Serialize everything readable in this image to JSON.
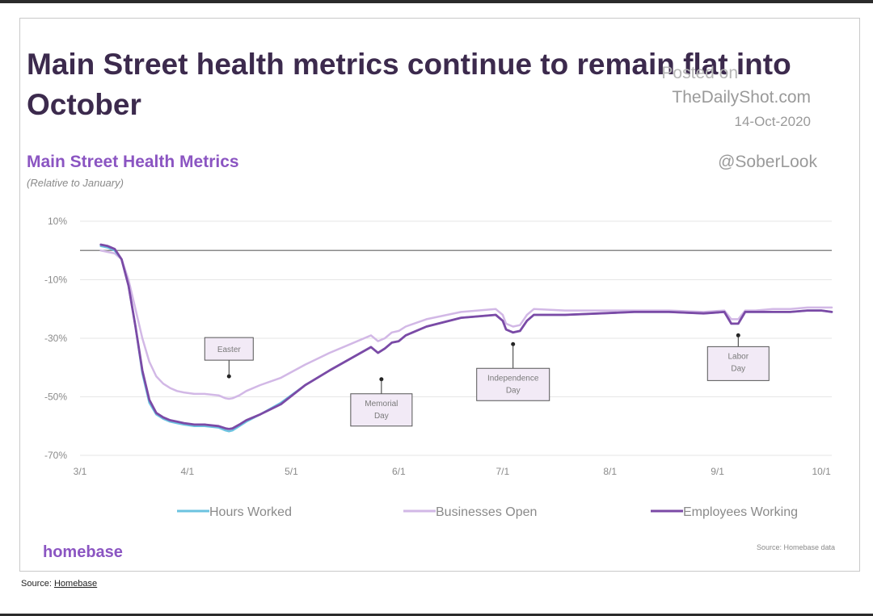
{
  "headline": "Main Street health metrics continue to remain flat into October",
  "watermark": {
    "posted": "Posted on",
    "site": "TheDailyShot.com",
    "date": "14-Oct-2020",
    "handle": "@SoberLook"
  },
  "brand": "homebase",
  "source_note": "Source: Homebase data",
  "source_line": {
    "prefix": "Source: ",
    "link": "Homebase"
  },
  "colors": {
    "hours_worked": "#6cc3e0",
    "businesses_open": "#d2b8e6",
    "employees_working": "#7b4aa6",
    "title": "#3c2a4d",
    "accent": "#8b55c2"
  },
  "chart_data": {
    "type": "line",
    "title": "Main Street Health Metrics",
    "subtitle": "(Relative to January)",
    "xlabel": "",
    "ylabel": "",
    "x_ticks": [
      "3/1",
      "4/1",
      "5/1",
      "6/1",
      "7/1",
      "8/1",
      "9/1",
      "10/1"
    ],
    "x_tick_days": [
      0,
      31,
      61,
      92,
      122,
      153,
      184,
      214
    ],
    "xlim_days": [
      0,
      217
    ],
    "y_ticks": [
      10,
      -10,
      -30,
      -50,
      -70
    ],
    "y_tick_labels": [
      "10%",
      "-10%",
      "-30%",
      "-50%",
      "-70%"
    ],
    "ylim": [
      -70,
      10
    ],
    "zero_line": 0,
    "legend_position": "bottom",
    "series": [
      {
        "name": "Hours Worked",
        "color": "#6cc3e0",
        "x": [
          6,
          8,
          10,
          12,
          14,
          16,
          18,
          20,
          22,
          24,
          26,
          28,
          30,
          33,
          36,
          40,
          42,
          43,
          44,
          46,
          48,
          52,
          58,
          65,
          72,
          78,
          84,
          86,
          88,
          90,
          92,
          94,
          100,
          110,
          120,
          122,
          123,
          125,
          127,
          129,
          131,
          140,
          150,
          160,
          170,
          180,
          186,
          188,
          190,
          192,
          195,
          200,
          205,
          210,
          214,
          217
        ],
        "y": [
          1.5,
          1,
          0,
          -3,
          -12,
          -26,
          -42,
          -52,
          -56,
          -57.5,
          -58.5,
          -59,
          -59.5,
          -60,
          -60,
          -60.5,
          -61.5,
          -61.8,
          -61.5,
          -60,
          -58.5,
          -56,
          -52,
          -46,
          -41,
          -37,
          -33,
          -35,
          -33.5,
          -31.5,
          -31,
          -29,
          -26,
          -23,
          -22,
          -24,
          -27,
          -28,
          -27.5,
          -24,
          -22,
          -22,
          -21.5,
          -21,
          -21,
          -21.5,
          -21,
          -25,
          -25,
          -21,
          -21,
          -21,
          -21,
          -20.5,
          -20.5,
          -21
        ]
      },
      {
        "name": "Businesses Open",
        "color": "#d2b8e6",
        "x": [
          6,
          8,
          10,
          12,
          14,
          16,
          18,
          20,
          22,
          24,
          26,
          28,
          30,
          33,
          36,
          40,
          42,
          43,
          44,
          46,
          48,
          52,
          58,
          65,
          72,
          78,
          84,
          86,
          88,
          90,
          92,
          94,
          100,
          110,
          120,
          122,
          123,
          125,
          127,
          129,
          131,
          140,
          150,
          160,
          170,
          180,
          186,
          188,
          190,
          192,
          195,
          200,
          205,
          210,
          214,
          217
        ],
        "y": [
          0,
          -0.5,
          -1,
          -3,
          -10,
          -20,
          -30,
          -38,
          -43,
          -45.5,
          -47,
          -48,
          -48.5,
          -49,
          -49,
          -49.5,
          -50.5,
          -50.7,
          -50.5,
          -49.5,
          -48,
          -46,
          -43.5,
          -39,
          -35,
          -32,
          -29,
          -31,
          -30,
          -28,
          -27.5,
          -26,
          -23.5,
          -21,
          -20,
          -22,
          -25,
          -26,
          -25.5,
          -22,
          -20,
          -20.5,
          -20.5,
          -20.5,
          -20.5,
          -21,
          -20.5,
          -23.5,
          -23.5,
          -20.5,
          -20.5,
          -20,
          -20,
          -19.5,
          -19.5,
          -19.5
        ]
      },
      {
        "name": "Employees Working",
        "color": "#7b4aa6",
        "x": [
          6,
          8,
          10,
          12,
          14,
          16,
          18,
          20,
          22,
          24,
          26,
          28,
          30,
          33,
          36,
          40,
          42,
          43,
          44,
          46,
          48,
          52,
          58,
          65,
          72,
          78,
          84,
          86,
          88,
          90,
          92,
          94,
          100,
          110,
          120,
          122,
          123,
          125,
          127,
          129,
          131,
          140,
          150,
          160,
          170,
          180,
          186,
          188,
          190,
          192,
          195,
          200,
          205,
          210,
          214,
          217
        ],
        "y": [
          2,
          1.5,
          0.5,
          -3,
          -12,
          -26,
          -41,
          -51,
          -55.5,
          -57,
          -58,
          -58.5,
          -59,
          -59.5,
          -59.5,
          -60,
          -60.8,
          -61,
          -60.8,
          -59.5,
          -58,
          -56,
          -52.5,
          -46,
          -41,
          -37,
          -33,
          -35,
          -33.5,
          -31.5,
          -31,
          -29,
          -26,
          -23,
          -22,
          -24,
          -27,
          -28,
          -27.5,
          -24,
          -22,
          -22,
          -21.5,
          -21,
          -21,
          -21.5,
          -21,
          -25,
          -25,
          -21,
          -21,
          -21,
          -21,
          -20.5,
          -20.5,
          -21
        ]
      }
    ],
    "annotations": [
      {
        "label": "Easter",
        "x": 43,
        "y": -43
      },
      {
        "label": "Memorial Day",
        "x": 87,
        "y": -44
      },
      {
        "label": "Independence Day",
        "x": 125,
        "y": -32
      },
      {
        "label": "Labor Day",
        "x": 190,
        "y": -29
      }
    ]
  }
}
